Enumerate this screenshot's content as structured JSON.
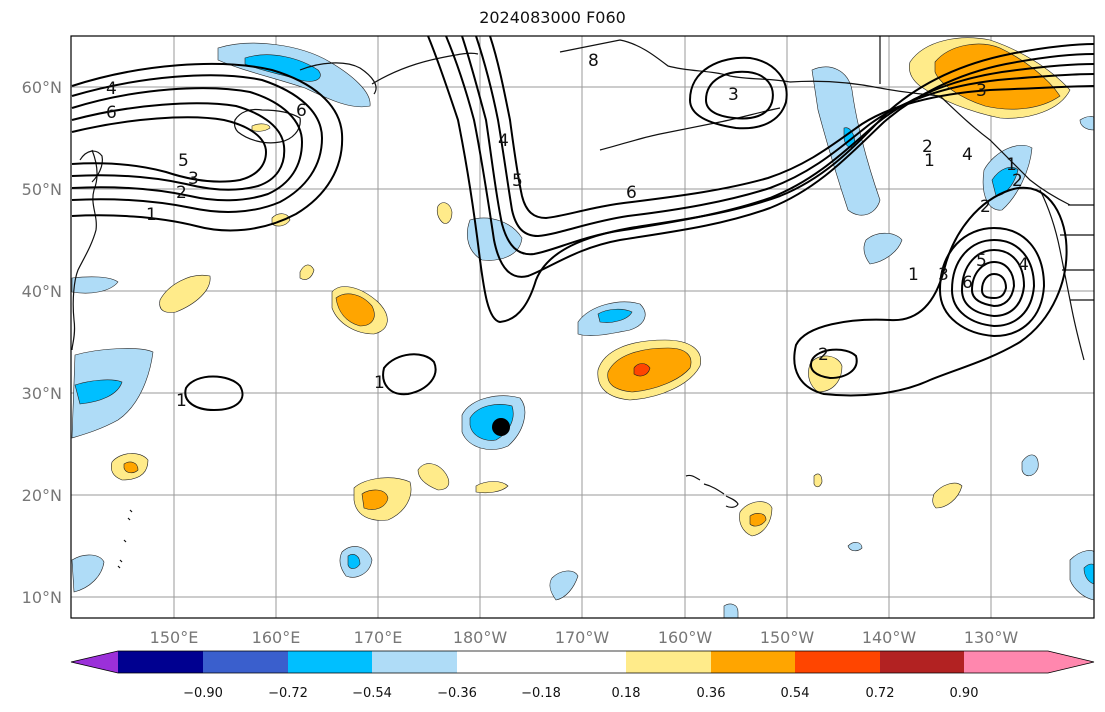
{
  "title": "2024083000 F060",
  "lat_labels": [
    "60°N",
    "50°N",
    "40°N",
    "30°N",
    "20°N",
    "10°N"
  ],
  "lon_labels": [
    "150°E",
    "160°E",
    "170°E",
    "180°W",
    "170°W",
    "160°W",
    "150°W",
    "140°W",
    "130°W"
  ],
  "colorbar": {
    "ticks": [
      "−0.90",
      "−0.72",
      "−0.54",
      "−0.36",
      "−0.18",
      "0.18",
      "0.36",
      "0.54",
      "0.72",
      "0.90"
    ],
    "colors": [
      "#9b30d9",
      "#000090",
      "#3a5fcd",
      "#00bfff",
      "#afdcf7",
      "#ffffff",
      "#ffeb8a",
      "#ffa500",
      "#ff4500",
      "#b22222",
      "#ff87ae"
    ]
  },
  "contour_labels": [
    "4",
    "6",
    "5",
    "3",
    "2",
    "1",
    "6",
    "4",
    "5",
    "3",
    "6",
    "8",
    "1",
    "1",
    "2",
    "1",
    "2",
    "4",
    "3",
    "1",
    "3",
    "6",
    "5",
    "4",
    "2",
    "1",
    "2"
  ],
  "storm_marker": "black-dot"
}
